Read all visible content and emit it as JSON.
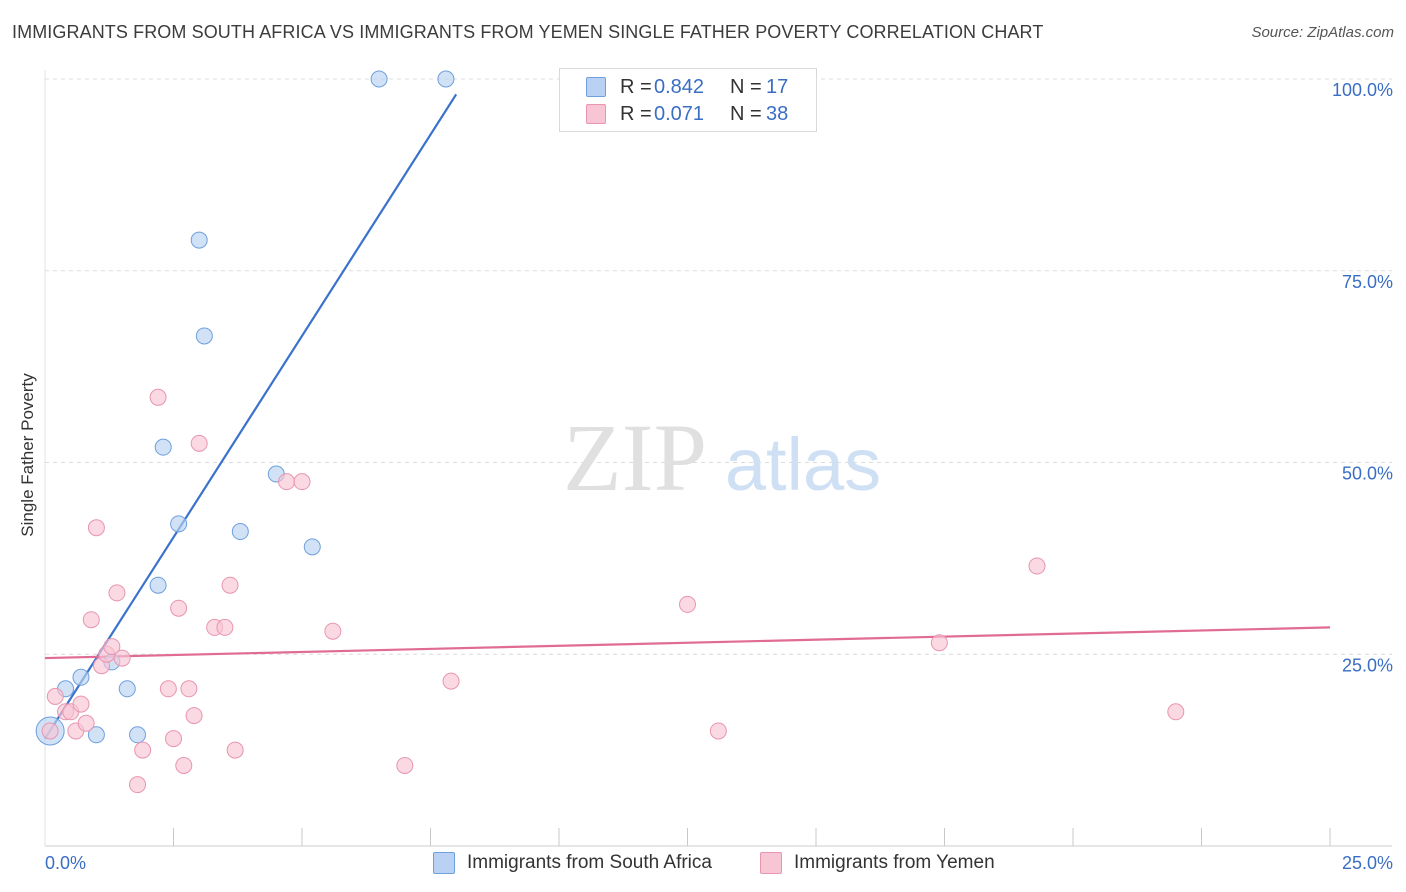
{
  "title": "IMMIGRANTS FROM SOUTH AFRICA VS IMMIGRANTS FROM YEMEN SINGLE FATHER POVERTY CORRELATION CHART",
  "source": "Source: ZipAtlas.com",
  "watermark": {
    "zip": "ZIP",
    "atlas": "atlas"
  },
  "colors": {
    "blue_fill": "#b9d2f3",
    "blue_stroke": "#6f9fdc",
    "blue_line": "#3a72cc",
    "pink_fill": "#f8c5d4",
    "pink_stroke": "#e895b0",
    "pink_line": "#e06b95",
    "value_text": "#3a6ec4"
  },
  "legend": {
    "rows": [
      {
        "r_label": "R =",
        "r_value": "0.842",
        "n_label": "N =",
        "n_value": "17"
      },
      {
        "r_label": "R =",
        "r_value": "0.071",
        "n_label": "N =",
        "n_value": "38"
      }
    ]
  },
  "bottom_legend": {
    "series1": "Immigrants from South Africa",
    "series2": "Immigrants from Yemen"
  },
  "chart_data": {
    "type": "scatter",
    "title": "IMMIGRANTS FROM SOUTH AFRICA VS IMMIGRANTS FROM YEMEN SINGLE FATHER POVERTY CORRELATION CHART",
    "xlabel": "",
    "ylabel": "Single Father Poverty",
    "xlim": [
      0,
      25
    ],
    "ylim": [
      0,
      100
    ],
    "x_tick_labels": [
      "0.0%",
      "25.0%"
    ],
    "y_tick_labels": [
      "25.0%",
      "50.0%",
      "75.0%",
      "100.0%"
    ],
    "y_ticks": [
      25,
      50,
      75,
      100
    ],
    "series": [
      {
        "name": "Immigrants from South Africa",
        "color": "blue",
        "points": [
          [
            0.1,
            15.0
          ],
          [
            0.4,
            20.5
          ],
          [
            0.7,
            22.0
          ],
          [
            1.0,
            14.5
          ],
          [
            1.3,
            24.0
          ],
          [
            1.6,
            20.5
          ],
          [
            1.8,
            14.5
          ],
          [
            2.2,
            34.0
          ],
          [
            2.6,
            42.0
          ],
          [
            2.3,
            52.0
          ],
          [
            3.0,
            79.0
          ],
          [
            3.1,
            66.5
          ],
          [
            3.8,
            41.0
          ],
          [
            4.5,
            48.5
          ],
          [
            5.2,
            39.0
          ],
          [
            6.5,
            100.0
          ],
          [
            7.8,
            100.0
          ]
        ],
        "trend": {
          "x0": 0.0,
          "y0": 14.0,
          "x1": 8.0,
          "y1": 98.0
        }
      },
      {
        "name": "Immigrants from Yemen",
        "color": "pink",
        "points": [
          [
            0.1,
            15.0
          ],
          [
            0.2,
            19.5
          ],
          [
            0.4,
            17.5
          ],
          [
            0.5,
            17.5
          ],
          [
            0.6,
            15.0
          ],
          [
            0.7,
            18.5
          ],
          [
            0.8,
            16.0
          ],
          [
            0.9,
            29.5
          ],
          [
            1.0,
            41.5
          ],
          [
            1.1,
            23.5
          ],
          [
            1.2,
            25.0
          ],
          [
            1.3,
            26.0
          ],
          [
            1.4,
            33.0
          ],
          [
            1.5,
            24.5
          ],
          [
            1.8,
            8.0
          ],
          [
            1.9,
            12.5
          ],
          [
            2.2,
            58.5
          ],
          [
            2.4,
            20.5
          ],
          [
            2.5,
            14.0
          ],
          [
            2.6,
            31.0
          ],
          [
            2.7,
            10.5
          ],
          [
            2.8,
            20.5
          ],
          [
            2.9,
            17.0
          ],
          [
            3.0,
            52.5
          ],
          [
            3.3,
            28.5
          ],
          [
            3.5,
            28.5
          ],
          [
            3.6,
            34.0
          ],
          [
            3.7,
            12.5
          ],
          [
            4.7,
            47.5
          ],
          [
            5.0,
            47.5
          ],
          [
            5.6,
            28.0
          ],
          [
            7.0,
            10.5
          ],
          [
            7.9,
            21.5
          ],
          [
            12.5,
            31.5
          ],
          [
            13.1,
            15.0
          ],
          [
            17.4,
            26.5
          ],
          [
            19.3,
            36.5
          ],
          [
            22.0,
            17.5
          ]
        ],
        "trend": {
          "x0": 0.0,
          "y0": 24.5,
          "x1": 25.0,
          "y1": 28.5
        }
      }
    ]
  }
}
